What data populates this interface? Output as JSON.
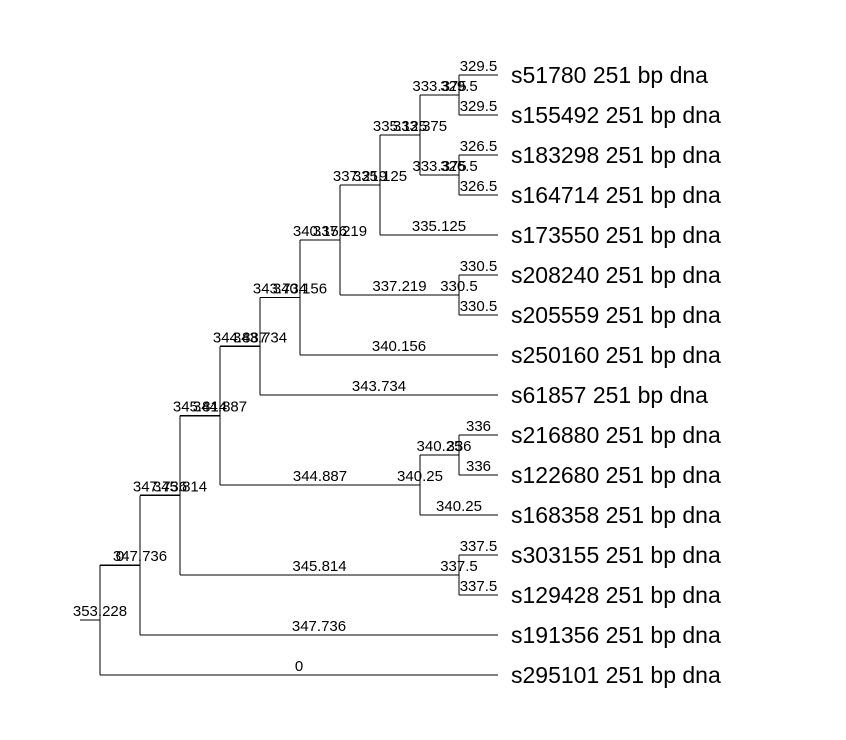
{
  "leaves": [
    {
      "id": "L0",
      "label": "s51780 251 bp dna"
    },
    {
      "id": "L1",
      "label": "s155492 251 bp dna"
    },
    {
      "id": "L2",
      "label": "s183298 251 bp dna"
    },
    {
      "id": "L3",
      "label": "s164714 251 bp dna"
    },
    {
      "id": "L4",
      "label": "s173550 251 bp dna"
    },
    {
      "id": "L5",
      "label": "s208240 251 bp dna"
    },
    {
      "id": "L6",
      "label": "s205559 251 bp dna"
    },
    {
      "id": "L7",
      "label": "s250160 251 bp dna"
    },
    {
      "id": "L8",
      "label": "s61857 251 bp dna"
    },
    {
      "id": "L9",
      "label": "s216880 251 bp dna"
    },
    {
      "id": "L10",
      "label": "s122680 251 bp dna"
    },
    {
      "id": "L11",
      "label": "s168358 251 bp dna"
    },
    {
      "id": "L12",
      "label": "s303155 251 bp dna"
    },
    {
      "id": "L13",
      "label": "s129428 251 bp dna"
    },
    {
      "id": "L14",
      "label": "s191356 251 bp dna"
    },
    {
      "id": "L15",
      "label": "s295101 251 bp dna"
    }
  ],
  "nodes": [
    {
      "id": "root",
      "label": "353.228",
      "children": [
        "N1",
        "L15"
      ],
      "child_labels": [
        "0",
        "0"
      ]
    },
    {
      "id": "N1",
      "label": "347.736",
      "children": [
        "N2",
        "L14"
      ],
      "child_labels": [
        "347.736",
        "347.736"
      ]
    },
    {
      "id": "N2",
      "label": "345.814",
      "children": [
        "N3",
        "N12"
      ],
      "child_labels": [
        "345.814",
        "345.814"
      ]
    },
    {
      "id": "N12",
      "label": "337.5",
      "children": [
        "L12",
        "L13"
      ],
      "child_labels": [
        "337.5",
        "337.5"
      ]
    },
    {
      "id": "N3",
      "label": "344.887",
      "children": [
        "N4",
        "N10"
      ],
      "child_labels": [
        "344.887",
        "344.887"
      ]
    },
    {
      "id": "N10",
      "label": "340.25",
      "children": [
        "N11",
        "L11"
      ],
      "child_labels": [
        "340.25",
        "340.25"
      ]
    },
    {
      "id": "N11",
      "label": "336",
      "children": [
        "L9",
        "L10"
      ],
      "child_labels": [
        "336",
        "336"
      ]
    },
    {
      "id": "N4",
      "label": "343.734",
      "children": [
        "N5",
        "L8"
      ],
      "child_labels": [
        "343.734",
        "343.734"
      ]
    },
    {
      "id": "N5",
      "label": "340.156",
      "children": [
        "N6",
        "L7"
      ],
      "child_labels": [
        "340.156",
        "340.156"
      ]
    },
    {
      "id": "N6",
      "label": "337.219",
      "children": [
        "N7",
        "N9"
      ],
      "child_labels": [
        "337.219",
        "337.219"
      ]
    },
    {
      "id": "N9",
      "label": "330.5",
      "children": [
        "L5",
        "L6"
      ],
      "child_labels": [
        "330.5",
        "330.5"
      ]
    },
    {
      "id": "N7",
      "label": "335.125",
      "children": [
        "N8",
        "L4"
      ],
      "child_labels": [
        "335.125",
        "335.125"
      ]
    },
    {
      "id": "N8",
      "label": "333.375",
      "children": [
        "N13",
        "N14"
      ],
      "child_labels": [
        "333.375",
        "333.375"
      ]
    },
    {
      "id": "N13",
      "label": "329.5",
      "children": [
        "L0",
        "L1"
      ],
      "child_labels": [
        "329.5",
        "329.5"
      ]
    },
    {
      "id": "N14",
      "label": "326.5",
      "children": [
        "L2",
        "L3"
      ],
      "child_labels": [
        "326.5",
        "326.5"
      ]
    }
  ]
}
